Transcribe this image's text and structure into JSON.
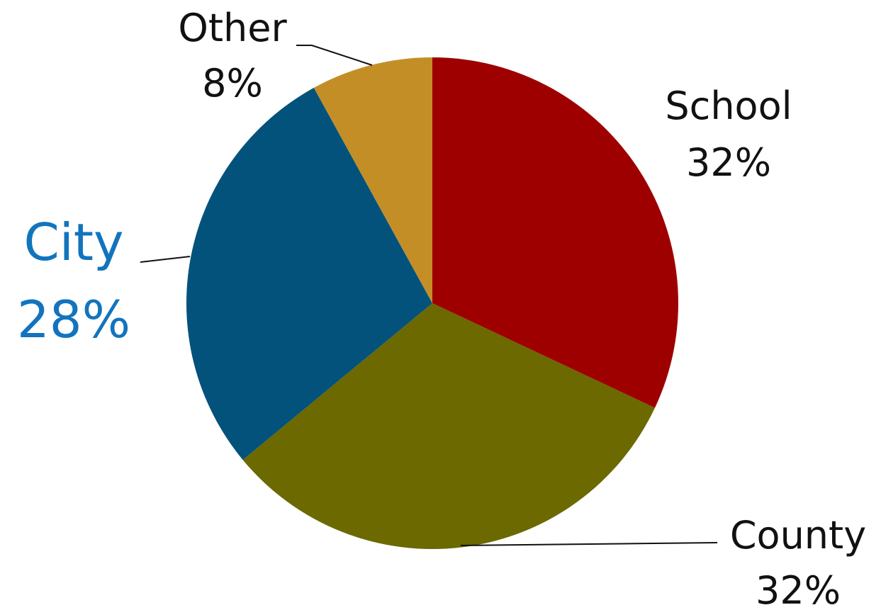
{
  "chart_data": {
    "type": "pie",
    "title": "",
    "start_angle_deg": 0,
    "direction": "clockwise",
    "slices": [
      {
        "label": "School",
        "value": 32,
        "value_label": "32%",
        "color": "#9e0000",
        "label_color": "#111111"
      },
      {
        "label": "County",
        "value": 32,
        "value_label": "32%",
        "color": "#6b6900",
        "label_color": "#111111"
      },
      {
        "label": "City",
        "value": 28,
        "value_label": "28%",
        "color": "#03527c",
        "label_color": "#1274bd"
      },
      {
        "label": "Other",
        "value": 8,
        "value_label": "8%",
        "color": "#c48e26",
        "label_color": "#111111"
      }
    ],
    "legend": "none"
  }
}
